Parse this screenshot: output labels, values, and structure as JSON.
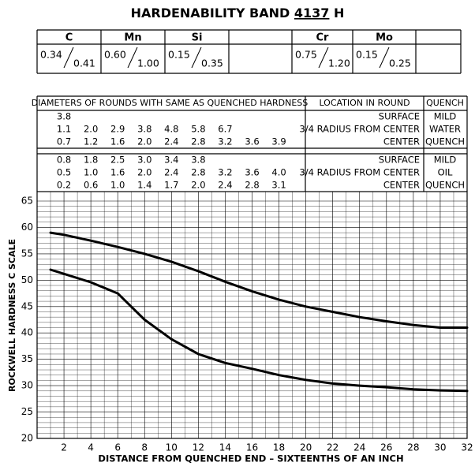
{
  "title": {
    "prefix": "HARDENABILITY BAND",
    "grade": "4137",
    "suffix": "H"
  },
  "composition": [
    {
      "element": "C",
      "min": "0.34",
      "max": "0.41"
    },
    {
      "element": "Mn",
      "min": "0.60",
      "max": "1.00"
    },
    {
      "element": "Si",
      "min": "0.15",
      "max": "0.35"
    },
    {
      "element": "Cr",
      "min": "0.75",
      "max": "1.20"
    },
    {
      "element": "Mo",
      "min": "0.15",
      "max": "0.25"
    }
  ],
  "diameter_table": {
    "headers": [
      "DIAMETERS OF ROUNDS WITH SAME AS QUENCHED HARDNESS",
      "LOCATION IN ROUND",
      "QUENCH"
    ],
    "groups": [
      {
        "quench": [
          "MILD",
          "WATER",
          "QUENCH"
        ],
        "rows": [
          {
            "location": "SURFACE",
            "diameters": [
              "3.8"
            ]
          },
          {
            "location": "3/4 RADIUS FROM CENTER",
            "diameters": [
              "1.1",
              "2.0",
              "2.9",
              "3.8",
              "4.8",
              "5.8",
              "6.7"
            ]
          },
          {
            "location": "CENTER",
            "diameters": [
              "0.7",
              "1.2",
              "1.6",
              "2.0",
              "2.4",
              "2.8",
              "3.2",
              "3.6",
              "3.9"
            ]
          }
        ]
      },
      {
        "quench": [
          "MILD",
          "OIL",
          "QUENCH"
        ],
        "rows": [
          {
            "location": "SURFACE",
            "diameters": [
              "0.8",
              "1.8",
              "2.5",
              "3.0",
              "3.4",
              "3.8"
            ]
          },
          {
            "location": "3/4 RADIUS FROM CENTER",
            "diameters": [
              "0.5",
              "1.0",
              "1.6",
              "2.0",
              "2.4",
              "2.8",
              "3.2",
              "3.6",
              "4.0"
            ]
          },
          {
            "location": "CENTER",
            "diameters": [
              "0.2",
              "0.6",
              "1.0",
              "1.4",
              "1.7",
              "2.0",
              "2.4",
              "2.8",
              "3.1"
            ]
          }
        ]
      }
    ]
  },
  "chart_data": {
    "type": "line",
    "x_label": "DISTANCE FROM QUENCHED END – SIXTEENTHS OF AN INCH",
    "y_label": "ROCKWELL HARDNESS C SCALE",
    "x": [
      1,
      2,
      4,
      6,
      8,
      10,
      12,
      14,
      16,
      18,
      20,
      22,
      24,
      26,
      28,
      30,
      32
    ],
    "series": [
      {
        "color": "#000000",
        "values": [
          59,
          58.6,
          57.5,
          56.3,
          55,
          53.5,
          51.7,
          49.7,
          47.9,
          46.3,
          45,
          44,
          43,
          42.2,
          41.5,
          41,
          41
        ]
      },
      {
        "color": "#000000",
        "values": [
          52,
          51.2,
          49.6,
          47.5,
          42.5,
          38.8,
          36,
          34.3,
          33.2,
          32,
          31.1,
          30.4,
          30,
          29.7,
          29.3,
          29.1,
          29
        ]
      }
    ],
    "xlim": [
      0,
      32
    ],
    "ylim": [
      20,
      65
    ],
    "xticks": [
      2,
      4,
      6,
      8,
      10,
      12,
      14,
      16,
      18,
      20,
      22,
      24,
      26,
      28,
      30,
      32
    ],
    "yticks": [
      20,
      25,
      30,
      35,
      40,
      45,
      50,
      55,
      60,
      65
    ],
    "grid": true
  }
}
